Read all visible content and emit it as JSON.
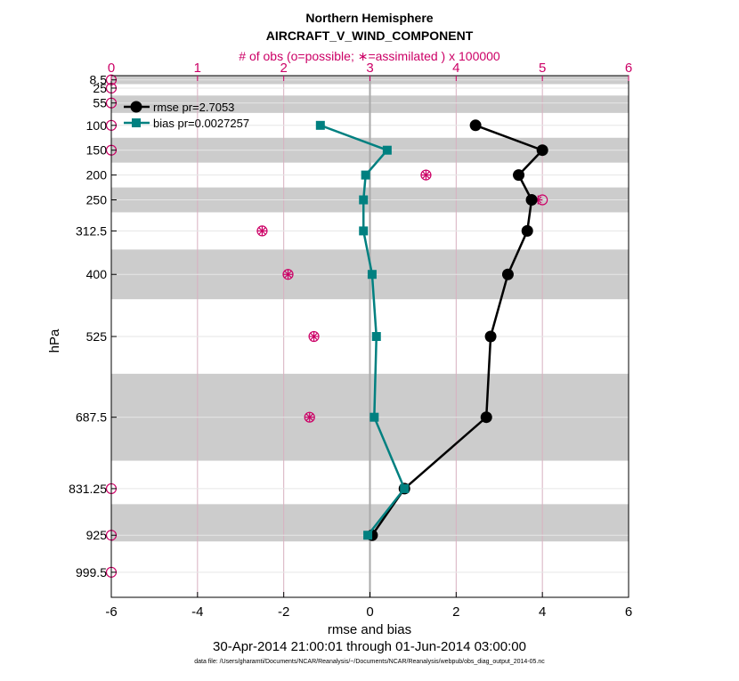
{
  "chart_data": {
    "type": "line",
    "title": "Northern Hemisphere",
    "subtitle": "AIRCRAFT_V_WIND_COMPONENT",
    "top_axis_label": "# of obs (o=possible; ∗=assimilated ) x 100000",
    "xlabel": "rmse and bias",
    "ylabel": "hPa",
    "date_range": "30-Apr-2014 21:00:01 through 01-Jun-2014 03:00:00",
    "data_file": "data file: /Users/gharamti/Documents/NCAR/Reanalysis/~/Documents/NCAR/Reanalysis/webpub/obs_diag_output_2014-05.nc",
    "xlim": [
      -6,
      6
    ],
    "top_xlim": [
      0,
      6
    ],
    "ylim": [
      1050,
      0
    ],
    "x_ticks": [
      "-6",
      "-4",
      "-2",
      "0",
      "2",
      "4",
      "6"
    ],
    "top_ticks": [
      "0",
      "1",
      "2",
      "3",
      "4",
      "5",
      "6"
    ],
    "levels": [
      8.5,
      25,
      55,
      100,
      150,
      200,
      250,
      312.5,
      400,
      525,
      687.5,
      831.25,
      925,
      999.5
    ],
    "level_labels": [
      "8.5",
      "25",
      "55",
      "100",
      "150",
      "200",
      "250",
      "312.5",
      "400",
      "525",
      "687.5",
      "831.25",
      "925",
      "999.5"
    ],
    "grid": true,
    "legend_position": "top-left",
    "gray_bands": [
      [
        0,
        17
      ],
      [
        40,
        75
      ],
      [
        125,
        175
      ],
      [
        225,
        275
      ],
      [
        350,
        450
      ],
      [
        600,
        775
      ],
      [
        862.5,
        937.5
      ]
    ],
    "series": [
      {
        "name": "rmse pr=2.7053",
        "color": "#000000",
        "marker": "circle",
        "levels": [
          100,
          150,
          200,
          250,
          312.5,
          400,
          525,
          687.5,
          831.25,
          925
        ],
        "values": [
          2.45,
          4.0,
          3.45,
          3.75,
          3.65,
          3.2,
          2.8,
          2.7,
          0.8,
          0.05
        ]
      },
      {
        "name": "bias pr=0.0027257",
        "color": "#008080",
        "marker": "square",
        "levels": [
          100,
          150,
          200,
          250,
          312.5,
          400,
          525,
          687.5,
          831.25,
          925
        ],
        "values": [
          -1.15,
          0.4,
          -0.1,
          -0.15,
          -0.15,
          0.05,
          0.15,
          0.1,
          0.8,
          -0.05
        ]
      }
    ],
    "obs_possible": {
      "levels": [
        8.5,
        25,
        55,
        100,
        150,
        200,
        250,
        312.5,
        400,
        525,
        687.5,
        831.25,
        925,
        999.5
      ],
      "values": [
        0,
        0,
        0,
        0,
        0,
        3.65,
        5.0,
        1.75,
        2.05,
        2.35,
        2.3,
        0,
        0,
        0
      ]
    },
    "obs_assimilated": {
      "levels": [
        200,
        250,
        312.5,
        400,
        525,
        687.5
      ],
      "values": [
        3.65,
        4.95,
        1.75,
        2.05,
        2.35,
        2.3
      ]
    },
    "colors": {
      "obs": "#cc0066",
      "gray_band": "#cccccc",
      "zero_line": "#aaaaaa",
      "grid_line": "#d8b0c0"
    }
  }
}
